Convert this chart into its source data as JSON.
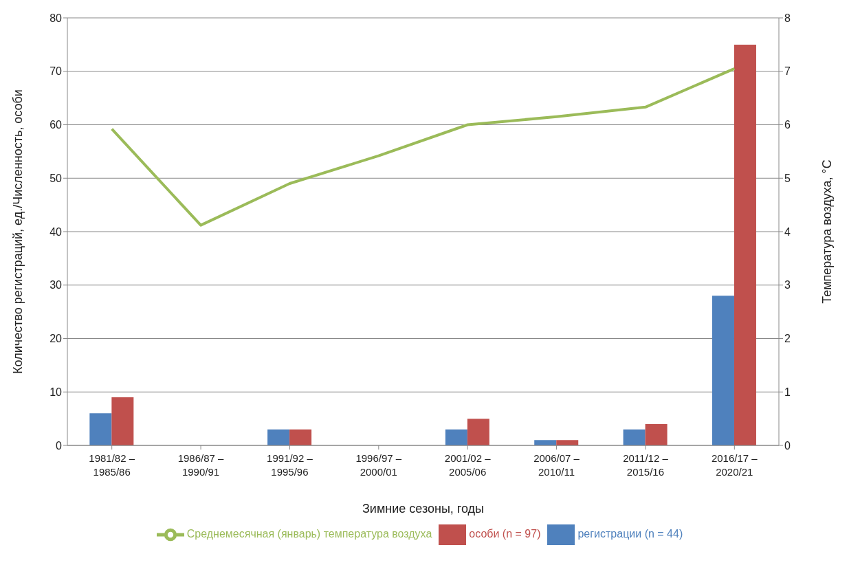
{
  "chart_data": {
    "type": "bar",
    "xlabel": "Зимние сезоны, годы",
    "ylabel": "Количество регистраций, ед./Численность, особи",
    "y2label": "Температура воздуха, °C",
    "categories": [
      "1981/82 – 1985/86",
      "1986/87 – 1990/91",
      "1991/92 – 1995/96",
      "1996/97 – 2000/01",
      "2001/02 – 2005/06",
      "2006/07 – 2010/11",
      "2011/12 – 2015/16",
      "2016/17 – 2020/21"
    ],
    "series": [
      {
        "name": "регистрации (n = 44)",
        "color": "#4f81bd",
        "values": [
          6,
          0,
          3,
          0,
          3,
          1,
          3,
          28
        ]
      },
      {
        "name": "особи (n = 97)",
        "color": "#c0504d",
        "values": [
          9,
          0,
          3,
          0,
          5,
          1,
          4,
          75
        ]
      },
      {
        "name": "Среднемесячная (январь) температура воздуха",
        "type": "line",
        "axis": "y2",
        "color": "#9bbb59",
        "values": [
          5.92,
          4.12,
          4.9,
          5.42,
          6.0,
          6.15,
          6.33,
          7.05
        ]
      }
    ],
    "ylim": [
      0,
      80
    ],
    "yticks": [
      0,
      10,
      20,
      30,
      40,
      50,
      60,
      70,
      80
    ],
    "y2lim": [
      0,
      8
    ],
    "y2ticks": [
      0,
      1,
      2,
      3,
      4,
      5,
      6,
      7,
      8
    ],
    "grid": "y",
    "legend": "bottom"
  }
}
